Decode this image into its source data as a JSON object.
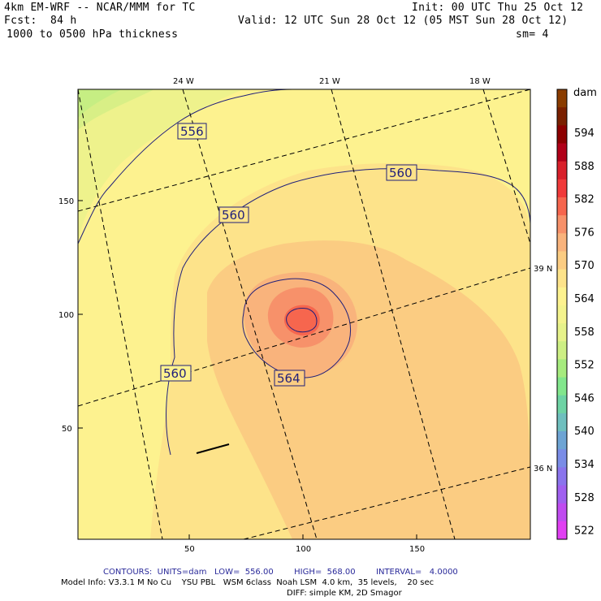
{
  "header": {
    "model": "4km EM-WRF -- NCAR/MMM for TC",
    "init": "Init: 00 UTC Thu 25 Oct 12",
    "fcst_label": "Fcst:",
    "fcst_value": "84 h",
    "valid": "Valid: 12 UTC Sun 28 Oct 12 (05 MST Sun 28 Oct 12)",
    "field": "1000 to 0500 hPa thickness",
    "smoothing": "sm= 4"
  },
  "map": {
    "top_ticks": [
      "24 W",
      "21 W",
      "18 W"
    ],
    "right_ticks": [
      "39 N",
      "36 N"
    ],
    "left_ticks": [
      "150",
      "100",
      "50"
    ],
    "bottom_ticks": [
      "50",
      "100",
      "150"
    ],
    "contour_labels": [
      "556",
      "560",
      "560",
      "560",
      "564"
    ]
  },
  "colorbar": {
    "unit": "dam",
    "levels": [
      "594",
      "588",
      "582",
      "576",
      "570",
      "564",
      "558",
      "552",
      "546",
      "540",
      "534",
      "528",
      "522"
    ],
    "colors": [
      "#8a3c00",
      "#7a2000",
      "#8c0000",
      "#b00018",
      "#d8202a",
      "#f03a3a",
      "#f6664e",
      "#f7916a",
      "#f9b37c",
      "#fbcc82",
      "#fde38a",
      "#fdf28f",
      "#f4f38d",
      "#e6f28a",
      "#cdef84",
      "#a6eb7e",
      "#82e68c",
      "#6ed3a4",
      "#6fbfbe",
      "#6ea4d4",
      "#7a8ce6",
      "#8a74ec",
      "#a060ef",
      "#c04cf0",
      "#e040f2"
    ]
  },
  "footer": {
    "contours": "CONTOURS:  UNITS=dam   LOW=  556.00        HIGH=  568.00        INTERVAL=   4.0000",
    "model_info": "Model Info: V3.3.1 M No Cu    YSU PBL   WSM 6class  Noah LSM  4.0 km,  35 levels,    20 sec",
    "diff": "DIFF: simple KM, 2D Smagor"
  }
}
